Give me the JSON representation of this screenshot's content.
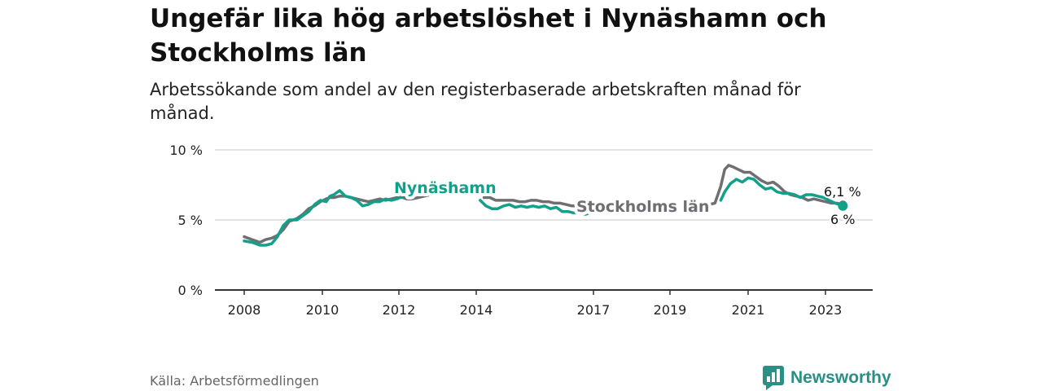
{
  "header": {
    "title": "Ungefär lika hög arbetslöshet i Nynäshamn och Stockholms län",
    "subtitle": "Arbetssökande som andel av den registerbaserade arbetskraften månad för månad."
  },
  "footer": {
    "source": "Källa: Arbetsförmedlingen",
    "brand": "Newsworthy"
  },
  "colors": {
    "nynashamn": "#12a08a",
    "stockholm": "#6f6f73",
    "grid": "#d9d9d9",
    "axis": "#333333",
    "brand": "#2a8f84"
  },
  "chart_data": {
    "type": "line",
    "title": "Ungefär lika hög arbetslöshet i Nynäshamn och Stockholms län",
    "subtitle": "Arbetssökande som andel av den registerbaserade arbetskraften månad för månad.",
    "xlabel": "",
    "ylabel": "",
    "ylim": [
      0,
      10
    ],
    "xlim": [
      2007.5,
      2024.2
    ],
    "y_ticks": [
      0,
      5,
      10
    ],
    "y_tick_labels": [
      "0 %",
      "5 %",
      "10 %"
    ],
    "x_ticks": [
      2008,
      2010,
      2012,
      2014,
      2017,
      2019,
      2021,
      2023
    ],
    "x_tick_labels": [
      "2008",
      "2010",
      "2012",
      "2014",
      "2017",
      "2019",
      "2021",
      "2023"
    ],
    "grid": true,
    "series": [
      {
        "name": "Nynäshamn",
        "label": "Nynäshamn",
        "end_label": "6 %",
        "x": [
          2008.0,
          2008.2,
          2008.4,
          2008.55,
          2008.7,
          2008.85,
          2009.0,
          2009.15,
          2009.35,
          2009.5,
          2009.65,
          2009.8,
          2009.95,
          2010.1,
          2010.2,
          2010.3,
          2010.45,
          2010.6,
          2010.75,
          2010.9,
          2011.05,
          2011.2,
          2011.35,
          2011.5,
          2011.65,
          2011.8,
          2011.95,
          2012.1,
          2012.2,
          2014.1,
          2014.25,
          2014.4,
          2014.55,
          2014.7,
          2014.85,
          2015.0,
          2015.15,
          2015.3,
          2015.45,
          2015.6,
          2015.75,
          2015.9,
          2016.05,
          2016.2,
          2016.35,
          2016.5,
          2016.65,
          2016.8,
          2016.9,
          2020.3,
          2020.4,
          2020.55,
          2020.7,
          2020.85,
          2021.0,
          2021.15,
          2021.3,
          2021.45,
          2021.6,
          2021.75,
          2021.9,
          2022.05,
          2022.2,
          2022.35,
          2022.5,
          2022.65,
          2022.8,
          2022.95,
          2023.1,
          2023.25,
          2023.35,
          2023.45
        ],
        "values": [
          3.5,
          3.4,
          3.2,
          3.2,
          3.3,
          3.8,
          4.6,
          5.0,
          5.0,
          5.3,
          5.6,
          6.1,
          6.4,
          6.3,
          6.7,
          6.8,
          7.1,
          6.7,
          6.6,
          6.4,
          6.0,
          6.1,
          6.3,
          6.3,
          6.5,
          6.4,
          6.5,
          6.7,
          6.8,
          6.4,
          6.0,
          5.8,
          5.8,
          6.0,
          6.1,
          5.9,
          6.0,
          5.9,
          6.0,
          5.9,
          6.0,
          5.8,
          5.9,
          5.6,
          5.6,
          5.5,
          5.5,
          5.4,
          5.5,
          6.4,
          7.0,
          7.6,
          7.9,
          7.7,
          8.0,
          7.9,
          7.5,
          7.2,
          7.3,
          7.0,
          6.9,
          6.9,
          6.8,
          6.6,
          6.8,
          6.8,
          6.7,
          6.6,
          6.4,
          6.2,
          6.1,
          6.0
        ]
      },
      {
        "name": "Stockholms län",
        "label": "Stockholms län",
        "end_label": "6,1 %",
        "x": [
          2008.0,
          2008.2,
          2008.4,
          2008.55,
          2008.7,
          2008.85,
          2009.0,
          2009.15,
          2009.35,
          2009.5,
          2009.65,
          2009.8,
          2009.95,
          2010.1,
          2010.2,
          2010.3,
          2010.45,
          2010.6,
          2010.75,
          2010.9,
          2011.05,
          2011.2,
          2011.35,
          2011.5,
          2011.65,
          2011.8,
          2011.95,
          2012.1,
          2012.2,
          2012.35,
          2012.5,
          2012.65,
          2012.8,
          2012.95,
          2014.2,
          2014.35,
          2014.5,
          2014.65,
          2014.8,
          2014.95,
          2015.1,
          2015.25,
          2015.4,
          2015.55,
          2015.7,
          2015.85,
          2016.0,
          2016.15,
          2016.3,
          2016.45,
          2016.6,
          2016.75,
          2016.9,
          2020.0,
          2020.15,
          2020.3,
          2020.4,
          2020.5,
          2020.6,
          2020.75,
          2020.9,
          2021.05,
          2021.2,
          2021.35,
          2021.5,
          2021.65,
          2021.8,
          2021.95,
          2022.1,
          2022.25,
          2022.4,
          2022.55,
          2022.7,
          2022.85,
          2023.0,
          2023.15,
          2023.3,
          2023.45
        ],
        "values": [
          3.8,
          3.6,
          3.4,
          3.6,
          3.7,
          3.9,
          4.3,
          4.9,
          5.1,
          5.4,
          5.8,
          6.0,
          6.3,
          6.5,
          6.6,
          6.6,
          6.7,
          6.7,
          6.6,
          6.5,
          6.4,
          6.3,
          6.4,
          6.5,
          6.4,
          6.5,
          6.6,
          6.6,
          6.5,
          6.5,
          6.6,
          6.7,
          6.8,
          6.9,
          6.6,
          6.6,
          6.4,
          6.4,
          6.4,
          6.4,
          6.3,
          6.3,
          6.4,
          6.4,
          6.3,
          6.3,
          6.2,
          6.2,
          6.1,
          6.0,
          6.0,
          6.0,
          6.1,
          6.1,
          6.2,
          7.4,
          8.6,
          8.9,
          8.8,
          8.6,
          8.4,
          8.4,
          8.1,
          7.8,
          7.6,
          7.7,
          7.4,
          7.0,
          6.8,
          6.7,
          6.6,
          6.4,
          6.5,
          6.4,
          6.3,
          6.2,
          6.2,
          6.1
        ]
      }
    ]
  }
}
